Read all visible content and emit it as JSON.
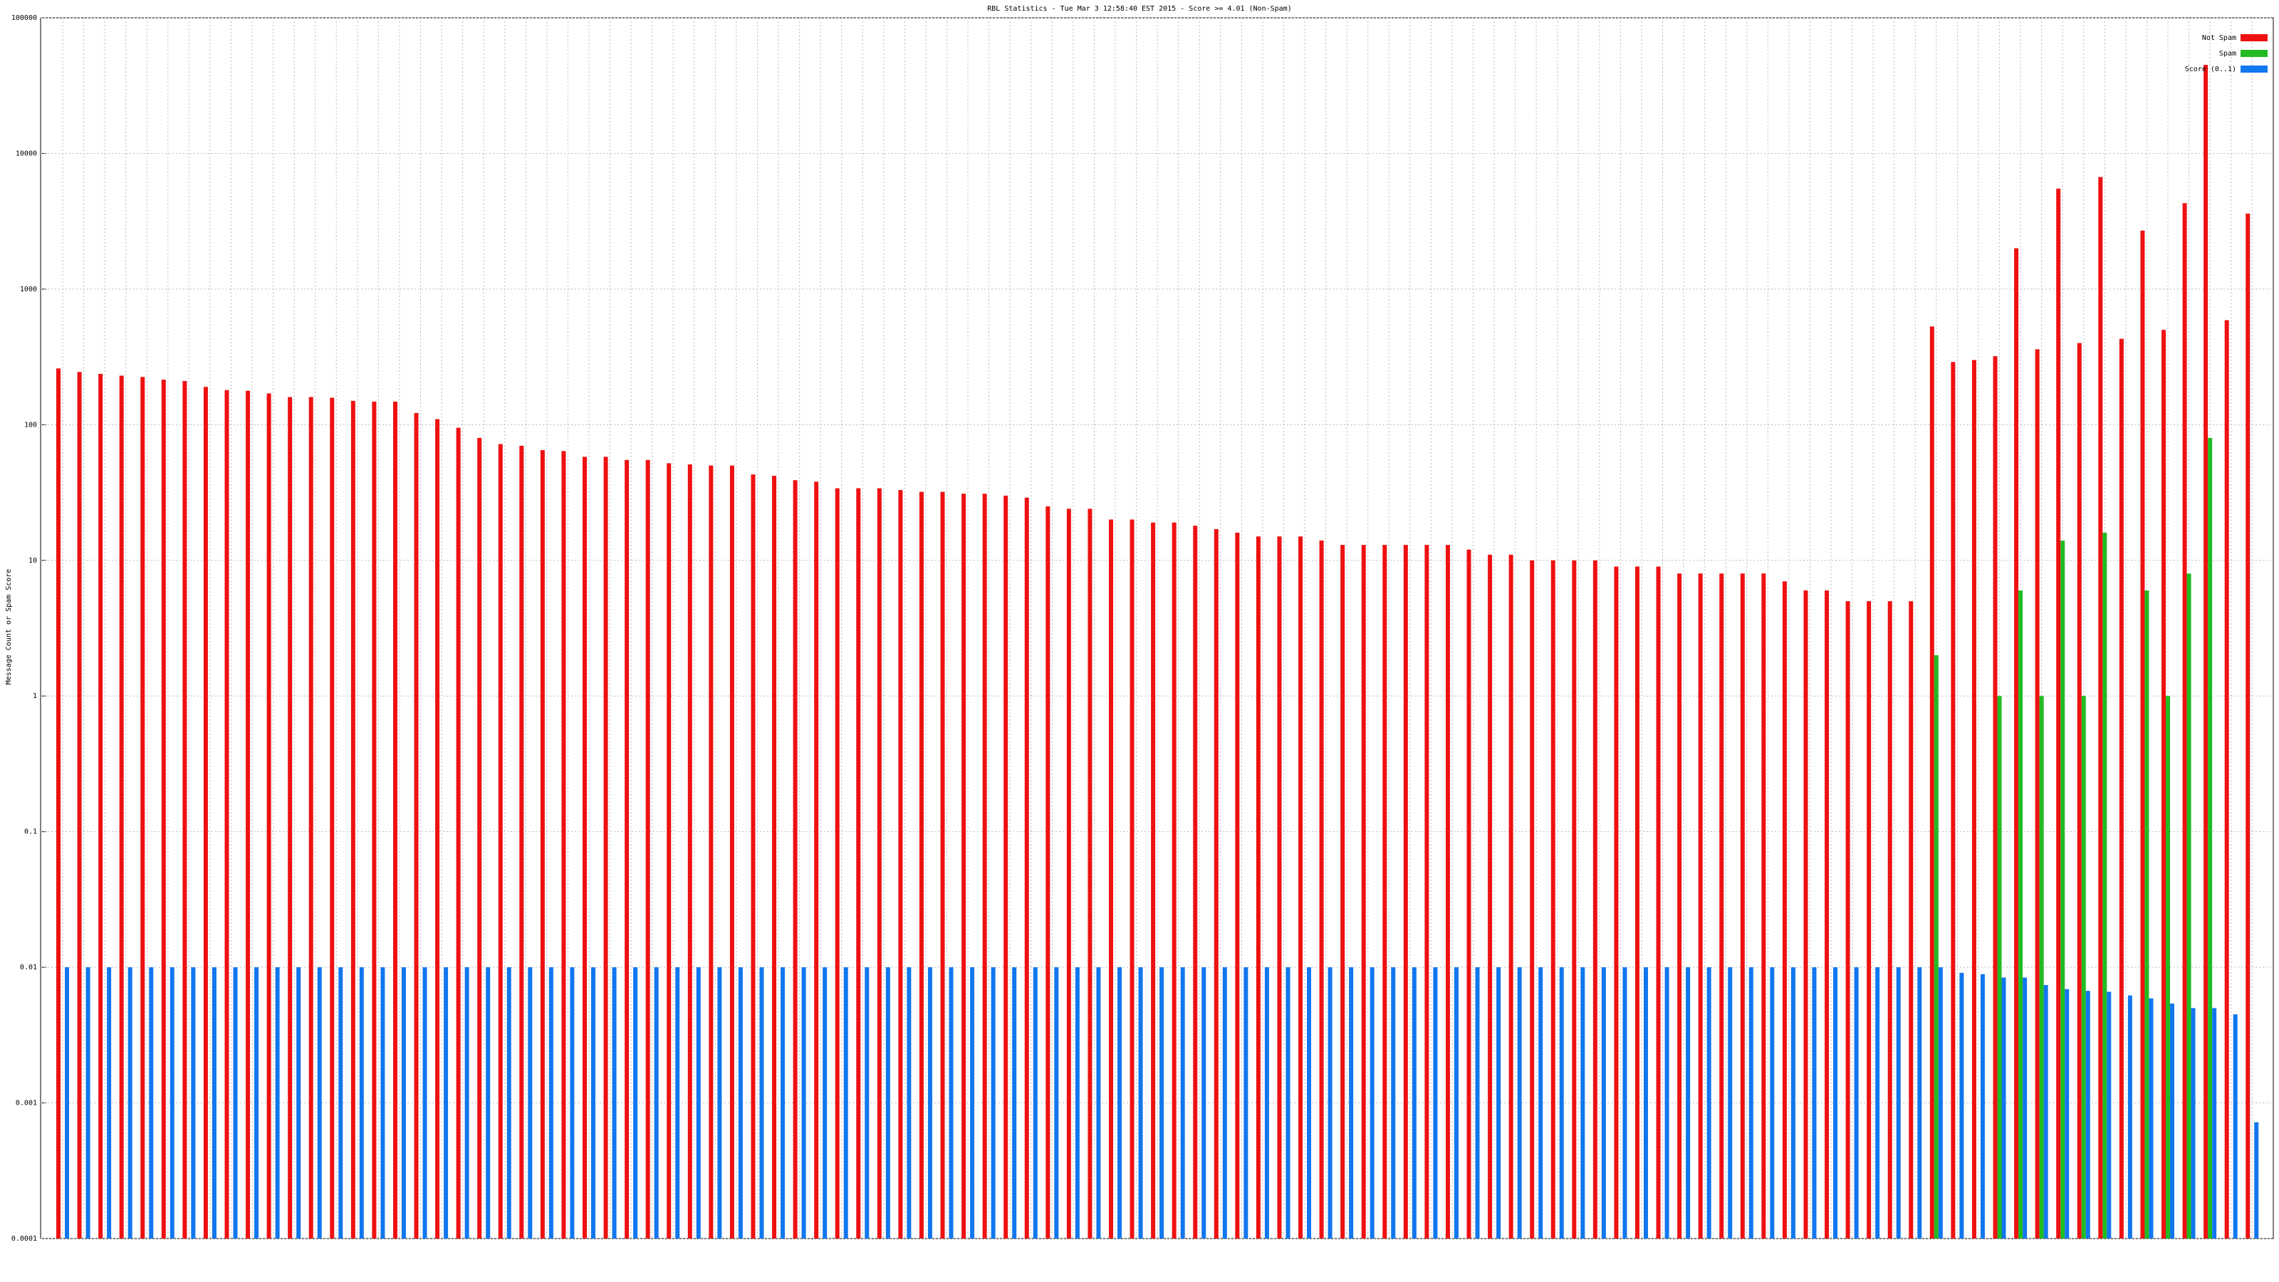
{
  "chart_data": {
    "type": "bar",
    "title": "RBL Statistics - Tue Mar  3 12:58:40 EST 2015 - Score >= 4.01 (Non-Spam)",
    "y_label": "Message Count or Spam Score",
    "log_scale": true,
    "grid": true,
    "legend": "top-right",
    "ylim": [
      0.0001,
      100000
    ],
    "yticks": [
      0.0001,
      0.001,
      0.01,
      0.1,
      1,
      10,
      100,
      1000,
      10000,
      100000
    ],
    "categories": [
      null,
      null,
      null,
      null,
      null,
      null,
      null,
      null,
      null,
      null,
      null,
      null,
      null,
      null,
      null,
      null,
      null,
      null,
      null,
      null,
      null,
      null,
      null,
      null,
      null,
      null,
      null,
      null,
      null,
      null,
      null,
      null,
      null,
      null,
      null,
      null,
      null,
      null,
      null,
      null,
      null,
      null,
      null,
      null,
      null,
      null,
      null,
      null,
      null,
      null,
      null,
      null,
      null,
      null,
      null,
      null,
      null,
      null,
      null,
      null,
      null,
      null,
      null,
      null,
      null,
      null,
      null,
      null,
      null,
      null,
      null,
      null,
      null,
      null,
      null,
      null,
      null,
      null,
      null,
      null,
      null,
      null,
      null,
      null,
      null,
      null,
      null,
      null,
      null,
      null,
      null,
      null,
      null,
      null,
      null,
      null,
      null,
      null,
      null,
      null,
      null,
      null,
      null,
      null,
      null
    ],
    "series": [
      {
        "name": "Not Spam",
        "color": "#ee1111",
        "values": [
          260,
          245,
          237,
          230,
          225,
          215,
          210,
          190,
          180,
          178,
          170,
          160,
          160,
          158,
          150,
          148,
          148,
          122,
          110,
          95,
          80,
          72,
          70,
          65,
          64,
          58,
          58,
          55,
          55,
          52,
          51,
          50,
          50,
          43,
          42,
          39,
          38,
          34,
          34,
          34,
          33,
          32,
          32,
          31,
          31,
          30,
          29,
          25,
          24,
          24,
          20,
          20,
          19,
          19,
          18,
          17,
          16,
          15,
          15,
          15,
          14,
          13,
          13,
          13,
          13,
          13,
          13,
          12,
          11,
          11,
          10,
          10,
          10,
          10,
          9,
          9,
          9,
          8,
          8,
          8,
          8,
          8,
          7,
          6,
          6,
          5,
          5,
          5,
          5,
          530,
          290,
          300,
          320,
          2000,
          360,
          5500,
          400,
          6700,
          430,
          2700,
          500,
          4300,
          45000,
          590,
          3600
        ]
      },
      {
        "name": "Spam",
        "color": "#22bb22",
        "values": [
          null,
          null,
          null,
          null,
          null,
          null,
          null,
          null,
          null,
          null,
          null,
          null,
          null,
          null,
          null,
          null,
          null,
          null,
          null,
          null,
          null,
          null,
          null,
          null,
          null,
          null,
          null,
          null,
          null,
          null,
          null,
          null,
          null,
          null,
          null,
          null,
          null,
          null,
          null,
          null,
          null,
          null,
          null,
          null,
          null,
          null,
          null,
          null,
          null,
          null,
          null,
          null,
          null,
          null,
          null,
          null,
          null,
          null,
          null,
          null,
          null,
          null,
          null,
          null,
          null,
          null,
          null,
          null,
          null,
          null,
          null,
          null,
          null,
          null,
          null,
          null,
          null,
          null,
          null,
          null,
          null,
          null,
          null,
          null,
          null,
          null,
          null,
          null,
          null,
          2,
          null,
          null,
          1,
          6,
          1,
          14,
          1,
          16,
          null,
          6,
          1,
          8,
          80,
          null,
          null
        ]
      },
      {
        "name": "Score (0..1)",
        "color": "#1177ee",
        "values": [
          0.01,
          0.01,
          0.01,
          0.01,
          0.01,
          0.01,
          0.01,
          0.01,
          0.01,
          0.01,
          0.01,
          0.01,
          0.01,
          0.01,
          0.01,
          0.01,
          0.01,
          0.01,
          0.01,
          0.01,
          0.01,
          0.01,
          0.01,
          0.01,
          0.01,
          0.01,
          0.01,
          0.01,
          0.01,
          0.01,
          0.01,
          0.01,
          0.01,
          0.01,
          0.01,
          0.01,
          0.01,
          0.01,
          0.01,
          0.01,
          0.01,
          0.01,
          0.01,
          0.01,
          0.01,
          0.01,
          0.01,
          0.01,
          0.01,
          0.01,
          0.01,
          0.01,
          0.01,
          0.01,
          0.01,
          0.01,
          0.01,
          0.01,
          0.01,
          0.01,
          0.01,
          0.01,
          0.01,
          0.01,
          0.01,
          0.01,
          0.01,
          0.01,
          0.01,
          0.01,
          0.01,
          0.01,
          0.01,
          0.01,
          0.01,
          0.01,
          0.01,
          0.01,
          0.01,
          0.01,
          0.01,
          0.01,
          0.01,
          0.01,
          0.01,
          0.01,
          0.01,
          0.01,
          0.01,
          0.01,
          0.0091,
          0.0089,
          0.0084,
          0.0084,
          0.0074,
          0.0069,
          0.0067,
          0.0066,
          0.0062,
          0.0059,
          0.0054,
          0.005,
          0.005,
          0.0045,
          0.00072
        ]
      }
    ]
  }
}
